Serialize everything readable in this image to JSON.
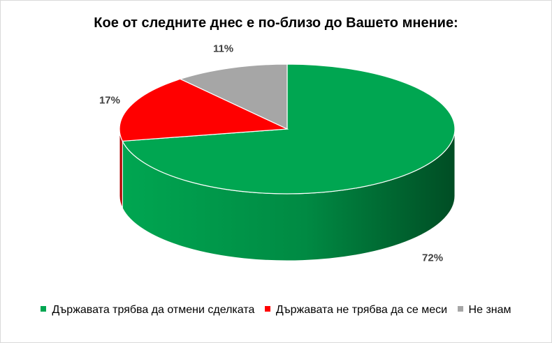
{
  "chart_data": {
    "type": "pie",
    "title": "Кое от следните днес е по-близо до Вашето мнение:",
    "legend_position": "bottom",
    "categories": [
      "Държавата трябва да отмени сделката",
      "Държавата не трябва да се меси",
      "Не знам"
    ],
    "values": [
      72,
      17,
      11
    ],
    "labels": [
      "72%",
      "17%",
      "11%"
    ],
    "colors": [
      "#00a651",
      "#ff0000",
      "#a6a6a6"
    ],
    "side_colors": [
      "#007a3b",
      "#b30000",
      "#7a7a7a"
    ],
    "style": "3d"
  }
}
